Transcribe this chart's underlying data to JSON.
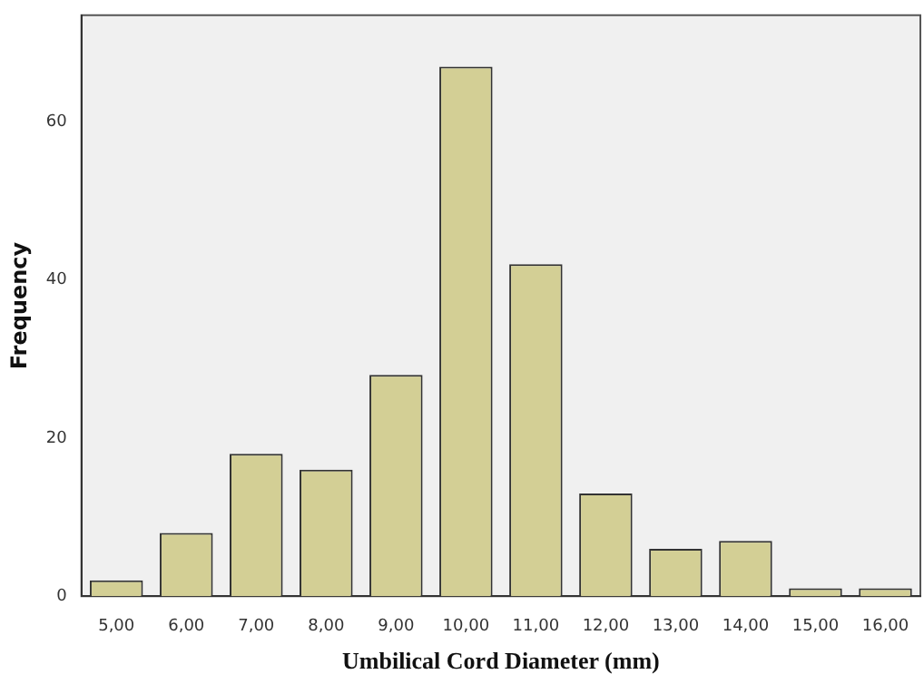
{
  "chart_data": {
    "type": "bar",
    "xlabel": "Umbilical Cord Diameter (mm)",
    "ylabel": "Frequency",
    "categories": [
      "5,00",
      "6,00",
      "7,00",
      "8,00",
      "9,00",
      "10,00",
      "11,00",
      "12,00",
      "13,00",
      "14,00",
      "15,00",
      "16,00"
    ],
    "values": [
      2,
      8,
      18,
      16,
      28,
      67,
      42,
      13,
      6,
      7,
      1,
      1
    ],
    "color": "#d3cf95",
    "ylim": [
      0,
      73.5
    ],
    "yticks": [
      0,
      20,
      40,
      60
    ],
    "grid": false,
    "legend": false
  }
}
